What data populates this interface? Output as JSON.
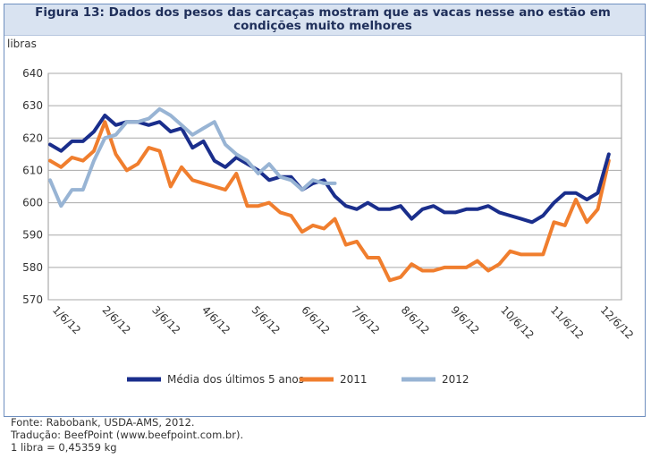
{
  "figure": {
    "title": "Figura 13: Dados dos pesos das carcaças mostram que as vacas nesse ano estão em condições muito melhores"
  },
  "footer": {
    "source": "Fonte: Rabobank, USDA-AMS, 2012.",
    "translation": "Tradução: BeefPoint (www.beefpoint.com.br).",
    "conversion": "1 libra = 0,45359 kg"
  },
  "chart_data": {
    "type": "line",
    "title": "Figura 13: Dados dos pesos das carcaças mostram que as vacas nesse ano estão em condições muito melhores",
    "xlabel": "",
    "ylabel": "libras",
    "ylim": [
      570,
      640
    ],
    "yticks": [
      570,
      580,
      590,
      600,
      610,
      620,
      630,
      640
    ],
    "grid": true,
    "legend": "bottom",
    "x_tick_labels": [
      "1/6/12",
      "2/6/12",
      "3/6/12",
      "4/6/12",
      "5/6/12",
      "6/6/12",
      "7/6/12",
      "8/6/12",
      "9/6/12",
      "10/6/12",
      "11/6/12",
      "12/6/12"
    ],
    "x_points": 53,
    "series": [
      {
        "name": "Média dos últimos 5 anos",
        "color": "#1a2e8c",
        "values": [
          618,
          616,
          619,
          619,
          622,
          627,
          624,
          625,
          625,
          624,
          625,
          622,
          623,
          617,
          619,
          613,
          611,
          614,
          612,
          610,
          607,
          608,
          608,
          604,
          606,
          607,
          602,
          599,
          598,
          600,
          598,
          598,
          599,
          595,
          598,
          599,
          597,
          597,
          598,
          598,
          599,
          597,
          596,
          595,
          594,
          596,
          600,
          603,
          603,
          601,
          603,
          615
        ]
      },
      {
        "name": "2011",
        "color": "#f07e2e",
        "values": [
          613,
          611,
          614,
          613,
          616,
          625,
          615,
          610,
          612,
          617,
          616,
          605,
          611,
          607,
          606,
          605,
          604,
          609,
          599,
          599,
          600,
          597,
          596,
          591,
          593,
          592,
          595,
          587,
          588,
          583,
          583,
          576,
          577,
          581,
          579,
          579,
          580,
          580,
          580,
          582,
          579,
          581,
          585,
          584,
          584,
          584,
          594,
          593,
          601,
          594,
          598,
          613
        ]
      },
      {
        "name": "2012",
        "color": "#98b4d4",
        "values": [
          607,
          599,
          604,
          604,
          613,
          620,
          621,
          625,
          625,
          626,
          629,
          627,
          624,
          621,
          623,
          625,
          618,
          615,
          613,
          609,
          612,
          608,
          607,
          604,
          607,
          606,
          606
        ]
      }
    ]
  }
}
